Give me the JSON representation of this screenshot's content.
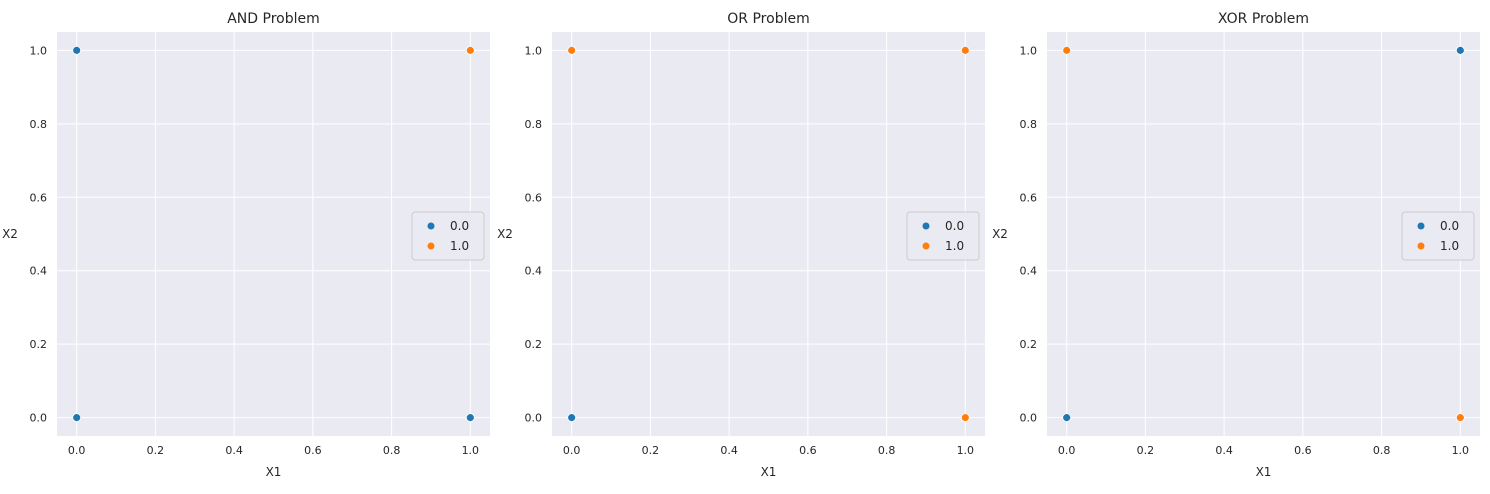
{
  "colors": {
    "plot_background": "#eaeaf2",
    "grid": "#ffffff",
    "class_0": "#1f77b4",
    "class_1": "#ff7f0e",
    "legend_border": "#cccccc",
    "legend_fill": "#eaeaf2"
  },
  "chart_data": [
    {
      "type": "scatter",
      "title": "AND Problem",
      "xlabel": "X1",
      "ylabel": "X2",
      "xlim": [
        -0.05,
        1.05
      ],
      "ylim": [
        -0.05,
        1.05
      ],
      "xticks": [
        "0.0",
        "0.2",
        "0.4",
        "0.6",
        "0.8",
        "1.0"
      ],
      "yticks": [
        "0.0",
        "0.2",
        "0.4",
        "0.6",
        "0.8",
        "1.0"
      ],
      "grid": true,
      "legend_position": "center-right",
      "series": [
        {
          "name": "0.0",
          "color_key": "class_0",
          "points": [
            [
              0,
              0
            ],
            [
              0,
              1
            ],
            [
              1,
              0
            ]
          ]
        },
        {
          "name": "1.0",
          "color_key": "class_1",
          "points": [
            [
              1,
              1
            ]
          ]
        }
      ]
    },
    {
      "type": "scatter",
      "title": "OR Problem",
      "xlabel": "X1",
      "ylabel": "X2",
      "xlim": [
        -0.05,
        1.05
      ],
      "ylim": [
        -0.05,
        1.05
      ],
      "xticks": [
        "0.0",
        "0.2",
        "0.4",
        "0.6",
        "0.8",
        "1.0"
      ],
      "yticks": [
        "0.0",
        "0.2",
        "0.4",
        "0.6",
        "0.8",
        "1.0"
      ],
      "grid": true,
      "legend_position": "center-right",
      "series": [
        {
          "name": "0.0",
          "color_key": "class_0",
          "points": [
            [
              0,
              0
            ]
          ]
        },
        {
          "name": "1.0",
          "color_key": "class_1",
          "points": [
            [
              0,
              1
            ],
            [
              1,
              0
            ],
            [
              1,
              1
            ]
          ]
        }
      ]
    },
    {
      "type": "scatter",
      "title": "XOR Problem",
      "xlabel": "X1",
      "ylabel": "X2",
      "xlim": [
        -0.05,
        1.05
      ],
      "ylim": [
        -0.05,
        1.05
      ],
      "xticks": [
        "0.0",
        "0.2",
        "0.4",
        "0.6",
        "0.8",
        "1.0"
      ],
      "yticks": [
        "0.0",
        "0.2",
        "0.4",
        "0.6",
        "0.8",
        "1.0"
      ],
      "grid": true,
      "legend_position": "center-right",
      "series": [
        {
          "name": "0.0",
          "color_key": "class_0",
          "points": [
            [
              0,
              0
            ],
            [
              1,
              1
            ]
          ]
        },
        {
          "name": "1.0",
          "color_key": "class_1",
          "points": [
            [
              0,
              1
            ],
            [
              1,
              0
            ]
          ]
        }
      ]
    }
  ]
}
